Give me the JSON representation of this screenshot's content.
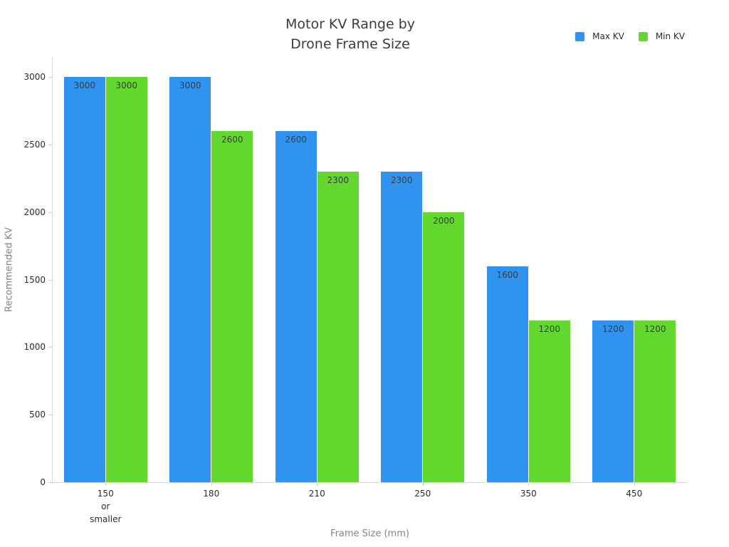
{
  "colors": {
    "max_kv": "#3193F0",
    "min_kv": "#62D82E",
    "axis_line": "#D8D8D8",
    "tick_text": "#2B2B2B",
    "muted_text": "#848484",
    "title_text": "#3B3B3B",
    "bar_label_text": "#3C3C3C",
    "background": "#FFFFFF"
  },
  "title": "Motor KV Range by\nDrone Frame Size",
  "legend": {
    "items": [
      {
        "label": "Max KV",
        "color": "#3193F0"
      },
      {
        "label": "Min KV",
        "color": "#62D82E"
      }
    ]
  },
  "chart_data": {
    "type": "bar",
    "title": "Motor KV Range by Drone Frame Size",
    "xlabel": "Frame Size (mm)",
    "ylabel": "Recommended KV",
    "categories": [
      "150\nor\nsmaller",
      "180",
      "210",
      "250",
      "350",
      "450"
    ],
    "series": [
      {
        "name": "Max KV",
        "color": "#3193F0",
        "values": [
          3000,
          3000,
          2600,
          2300,
          1600,
          1200
        ]
      },
      {
        "name": "Min KV",
        "color": "#62D82E",
        "values": [
          3000,
          2600,
          2300,
          2000,
          1200,
          1200
        ]
      }
    ],
    "yticks": [
      0,
      500,
      1000,
      1500,
      2000,
      2500,
      3000
    ],
    "ylim": [
      0,
      3150
    ],
    "bar_labels": true,
    "grid": false,
    "legend_position": "top-right"
  }
}
